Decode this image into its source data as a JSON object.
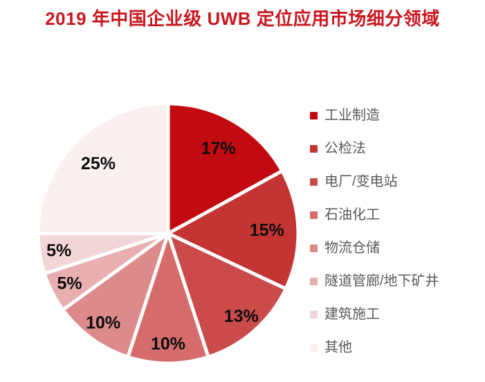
{
  "title": "2019 年中国企业级 UWB 定位应用市场细分领域",
  "title_color": "#c9161d",
  "chart_data": {
    "type": "pie",
    "title": "2019 年中国企业级 UWB 定位应用市场细分领域",
    "start_angle_deg": 0,
    "direction": "clockwise",
    "legend_position": "right",
    "data_label_format": "percent",
    "data_label_color": "#0d0d0d",
    "legend_text_color": "#595959",
    "separator_color": "#ffffff",
    "slices": [
      {
        "label": "工业制造",
        "value": 17,
        "display": "17%",
        "color": "#c20b11"
      },
      {
        "label": "公检法",
        "value": 15,
        "display": "15%",
        "color": "#c33433"
      },
      {
        "label": "电厂/变电站",
        "value": 13,
        "display": "13%",
        "color": "#cb4b4b"
      },
      {
        "label": "石油化工",
        "value": 10,
        "display": "10%",
        "color": "#d66b6b"
      },
      {
        "label": "物流仓储",
        "value": 10,
        "display": "10%",
        "color": "#dc8a8a"
      },
      {
        "label": "隧道管廊/地下矿井",
        "value": 5,
        "display": "5%",
        "color": "#e8aeb0"
      },
      {
        "label": "建筑施工",
        "value": 5,
        "display": "5%",
        "color": "#f2d6d7"
      },
      {
        "label": "其他",
        "value": 25,
        "display": "25%",
        "color": "#faf0f0"
      }
    ]
  }
}
